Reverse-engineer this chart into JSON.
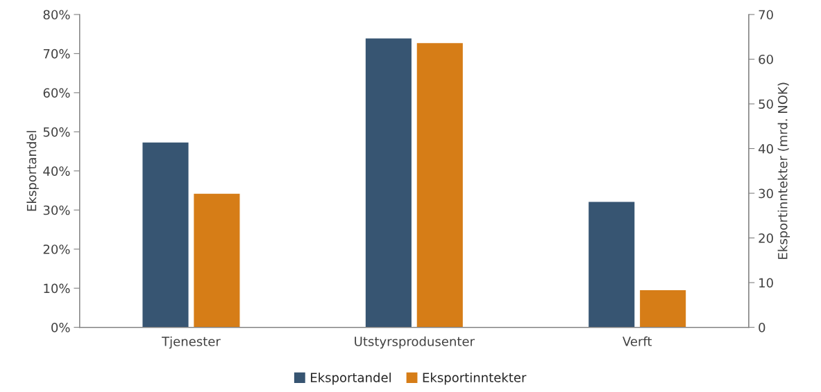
{
  "chart_data": {
    "type": "bar",
    "ylabel": "Eksportandel",
    "y2label": "Eksportinntekter (mrd. NOK)",
    "categories": [
      "Tjenester",
      "Utstyrsprodusenter",
      "Verft"
    ],
    "series": [
      {
        "name": "Eksportandel",
        "color": "#375572",
        "values": [
          47.4,
          74.0,
          32.2
        ]
      },
      {
        "name": "Eksportinntekter",
        "color": "#d67d17",
        "values": [
          30.0,
          63.7,
          8.4
        ],
        "axis": "y2"
      }
    ],
    "ylim": [
      0,
      80
    ],
    "yticks": [
      {
        "value": 0,
        "label": "0%"
      },
      {
        "value": 10,
        "label": "10%"
      },
      {
        "value": 20,
        "label": "20%"
      },
      {
        "value": 30,
        "label": "30%"
      },
      {
        "value": 40,
        "label": "40%"
      },
      {
        "value": 50,
        "label": "50%"
      },
      {
        "value": 60,
        "label": "60%"
      },
      {
        "value": 70,
        "label": "70%"
      },
      {
        "value": 80,
        "label": "80%"
      }
    ],
    "y2lim": [
      0,
      70
    ],
    "y2ticks": [
      0,
      10,
      20,
      30,
      40,
      50,
      60,
      70
    ],
    "grid": false,
    "legend": "bottom"
  }
}
